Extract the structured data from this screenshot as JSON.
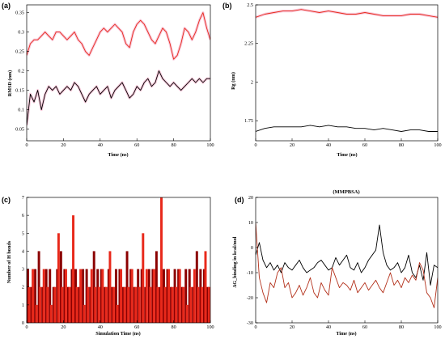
{
  "chart_data": [
    {
      "panel": "(a)",
      "type": "line",
      "xlabel": "Time (ns)",
      "ylabel": "RMSD (nm)",
      "xlim": [
        0,
        100
      ],
      "ylim": [
        0.02,
        0.37
      ],
      "xticks": [
        0,
        20,
        40,
        60,
        80,
        100
      ],
      "yticks": [
        0.05,
        0.1,
        0.15,
        0.2,
        0.25,
        0.3,
        0.35
      ],
      "series": [
        {
          "color": "#e8291b",
          "highlight": "#f2a0c0",
          "x": [
            0,
            2,
            4,
            6,
            8,
            10,
            12,
            14,
            16,
            18,
            20,
            22,
            24,
            26,
            28,
            30,
            32,
            34,
            36,
            38,
            40,
            42,
            44,
            46,
            48,
            50,
            52,
            54,
            56,
            58,
            60,
            62,
            64,
            66,
            68,
            70,
            72,
            74,
            76,
            78,
            80,
            82,
            84,
            86,
            88,
            90,
            92,
            94,
            96,
            98,
            100
          ],
          "values": [
            0.24,
            0.27,
            0.28,
            0.28,
            0.29,
            0.3,
            0.29,
            0.28,
            0.3,
            0.3,
            0.29,
            0.28,
            0.29,
            0.3,
            0.28,
            0.27,
            0.25,
            0.24,
            0.26,
            0.28,
            0.3,
            0.31,
            0.3,
            0.31,
            0.32,
            0.31,
            0.3,
            0.27,
            0.26,
            0.3,
            0.32,
            0.33,
            0.32,
            0.3,
            0.28,
            0.27,
            0.29,
            0.31,
            0.3,
            0.27,
            0.23,
            0.24,
            0.27,
            0.31,
            0.3,
            0.28,
            0.3,
            0.33,
            0.35,
            0.31,
            0.28
          ]
        },
        {
          "color": "#000000",
          "highlight": "#f2a0c0",
          "x": [
            0,
            2,
            4,
            6,
            8,
            10,
            12,
            14,
            16,
            18,
            20,
            22,
            24,
            26,
            28,
            30,
            32,
            34,
            36,
            38,
            40,
            42,
            44,
            46,
            48,
            50,
            52,
            54,
            56,
            58,
            60,
            62,
            64,
            66,
            68,
            70,
            72,
            74,
            76,
            78,
            80,
            82,
            84,
            86,
            88,
            90,
            92,
            94,
            96,
            98,
            100
          ],
          "values": [
            0.06,
            0.14,
            0.12,
            0.15,
            0.1,
            0.14,
            0.16,
            0.15,
            0.16,
            0.14,
            0.15,
            0.16,
            0.15,
            0.17,
            0.16,
            0.14,
            0.12,
            0.14,
            0.15,
            0.16,
            0.14,
            0.15,
            0.16,
            0.13,
            0.15,
            0.16,
            0.17,
            0.15,
            0.13,
            0.14,
            0.16,
            0.15,
            0.17,
            0.18,
            0.16,
            0.17,
            0.2,
            0.18,
            0.17,
            0.16,
            0.17,
            0.16,
            0.15,
            0.16,
            0.17,
            0.18,
            0.17,
            0.18,
            0.17,
            0.18,
            0.18
          ]
        }
      ]
    },
    {
      "panel": "(b)",
      "type": "line",
      "xlabel": "Time (ns)",
      "ylabel": "Rg (nm)",
      "xlim": [
        0,
        100
      ],
      "ylim": [
        1.62,
        2.5
      ],
      "xticks": [
        0,
        20,
        40,
        60,
        80,
        100
      ],
      "yticks": [
        1.75,
        2,
        2.25,
        2.5
      ],
      "series": [
        {
          "color": "#e8291b",
          "highlight": "#f2a0c0",
          "x": [
            0,
            5,
            10,
            15,
            20,
            25,
            30,
            35,
            40,
            45,
            50,
            55,
            60,
            65,
            70,
            75,
            80,
            85,
            90,
            95,
            100
          ],
          "values": [
            2.42,
            2.44,
            2.45,
            2.46,
            2.46,
            2.47,
            2.46,
            2.45,
            2.46,
            2.45,
            2.44,
            2.44,
            2.45,
            2.44,
            2.43,
            2.43,
            2.43,
            2.44,
            2.44,
            2.43,
            2.42
          ]
        },
        {
          "color": "#000000",
          "x": [
            0,
            5,
            10,
            15,
            20,
            25,
            30,
            35,
            40,
            45,
            50,
            55,
            60,
            65,
            70,
            75,
            80,
            85,
            90,
            95,
            100
          ],
          "values": [
            1.68,
            1.7,
            1.71,
            1.71,
            1.71,
            1.71,
            1.72,
            1.71,
            1.72,
            1.71,
            1.71,
            1.7,
            1.7,
            1.69,
            1.7,
            1.69,
            1.68,
            1.69,
            1.69,
            1.68,
            1.68
          ]
        }
      ]
    },
    {
      "panel": "(c)",
      "type": "bar",
      "xlabel": "Simulation Time (ns)",
      "ylabel": "Number of H bonds",
      "xlim": [
        0,
        100
      ],
      "ylim": [
        0,
        7
      ],
      "xticks": [
        0,
        20,
        40,
        60,
        80,
        100
      ],
      "yticks": [
        0,
        1,
        2,
        3,
        4,
        5,
        6,
        7
      ],
      "series": [
        {
          "color": "#8b0000",
          "values": [
            3,
            2,
            3,
            4,
            2,
            3,
            3,
            2,
            3,
            4,
            3,
            2,
            3,
            3,
            2,
            3,
            3,
            2,
            4,
            3,
            3,
            2,
            3,
            2,
            3,
            3,
            2,
            4,
            3,
            2,
            3,
            3,
            2,
            3,
            3,
            4,
            2,
            3,
            3,
            2,
            3,
            3,
            2,
            3,
            3,
            2,
            4,
            3,
            3,
            2
          ]
        },
        {
          "color": "#e8291b",
          "values": [
            2,
            3,
            1,
            2,
            3,
            2,
            1,
            2,
            5,
            2,
            3,
            2,
            6,
            2,
            3,
            1,
            2,
            3,
            2,
            2,
            3,
            2,
            4,
            2,
            1,
            3,
            2,
            2,
            3,
            2,
            2,
            5,
            3,
            2,
            3,
            2,
            7,
            2,
            3,
            2,
            2,
            3,
            2,
            1,
            2,
            3,
            2,
            2,
            4,
            2
          ]
        }
      ]
    },
    {
      "panel": "(d)",
      "type": "line",
      "title": "(MMPBSA)",
      "xlabel": "Time (ns)",
      "ylabel": "ΔG_binding in kcal/mol",
      "xlim": [
        0,
        100
      ],
      "ylim": [
        -30,
        20
      ],
      "xticks": [
        0,
        20,
        40,
        60,
        80,
        100
      ],
      "yticks": [
        -30,
        -20,
        -10,
        0,
        10,
        20
      ],
      "series": [
        {
          "color": "#000000",
          "x": [
            0,
            2,
            4,
            6,
            8,
            10,
            12,
            14,
            16,
            18,
            20,
            22,
            24,
            26,
            28,
            30,
            32,
            34,
            36,
            38,
            40,
            42,
            44,
            46,
            48,
            50,
            52,
            54,
            56,
            58,
            60,
            62,
            64,
            66,
            68,
            70,
            72,
            74,
            76,
            78,
            80,
            82,
            84,
            86,
            88,
            90,
            92,
            94,
            96,
            98,
            100
          ],
          "values": [
            -3,
            2,
            -5,
            -8,
            -6,
            -9,
            -7,
            -10,
            -6,
            -8,
            -9,
            -7,
            -5,
            -8,
            -10,
            -9,
            -8,
            -6,
            -5,
            -7,
            -9,
            -8,
            -4,
            -7,
            -5,
            -3,
            -8,
            -9,
            -6,
            -10,
            -8,
            -5,
            -3,
            -1,
            9,
            -2,
            -7,
            -9,
            -8,
            -6,
            -10,
            -8,
            -3,
            -10,
            -12,
            -7,
            -13,
            -2,
            -15,
            -7,
            -8
          ]
        },
        {
          "color": "#b3301a",
          "x": [
            0,
            2,
            4,
            6,
            8,
            10,
            12,
            14,
            16,
            18,
            20,
            22,
            24,
            26,
            28,
            30,
            32,
            34,
            36,
            38,
            40,
            42,
            44,
            46,
            48,
            50,
            52,
            54,
            56,
            58,
            60,
            62,
            64,
            66,
            68,
            70,
            72,
            74,
            76,
            78,
            80,
            82,
            84,
            86,
            88,
            90,
            92,
            94,
            96,
            98,
            100
          ],
          "values": [
            10,
            -12,
            -18,
            -22,
            -14,
            -16,
            -10,
            -8,
            -16,
            -14,
            -20,
            -18,
            -15,
            -19,
            -16,
            -12,
            -18,
            -20,
            -14,
            -17,
            -19,
            -8,
            -12,
            -16,
            -14,
            -15,
            -17,
            -13,
            -18,
            -16,
            -14,
            -17,
            -15,
            -13,
            -16,
            -18,
            -14,
            -10,
            -15,
            -13,
            -16,
            -12,
            -14,
            -11,
            -13,
            -6,
            -9,
            -18,
            -20,
            -24,
            -12
          ]
        }
      ]
    }
  ]
}
